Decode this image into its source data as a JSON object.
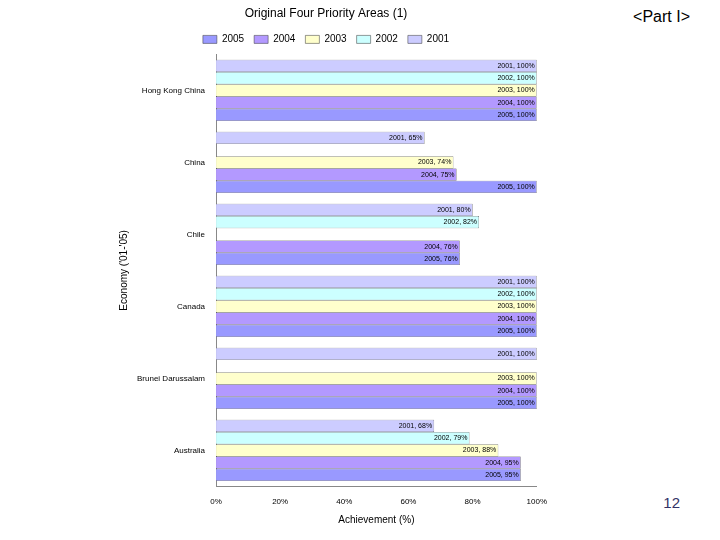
{
  "chart_data": {
    "type": "bar",
    "orientation": "horizontal",
    "title": "Original Four Priority Areas (1)",
    "x_label": "Achievement (%)",
    "y_label": "Economy ('01-'05)",
    "annotations": [
      "<Part I>",
      "12"
    ],
    "categories": [
      "Hong Kong China",
      "China",
      "Chile",
      "Canada",
      "Brunei Darussalam",
      "Australia"
    ],
    "series": [
      {
        "name": "2001",
        "color": "#ccccff",
        "values": [
          100,
          65,
          80,
          100,
          100,
          68
        ],
        "value_labels": [
          "2001, 100%",
          "2001, 65%",
          "2001, 80%",
          "2001, 100%",
          "2001, 100%",
          "2001, 68%"
        ]
      },
      {
        "name": "2002",
        "color": "#ccffff",
        "values": [
          100,
          null,
          82,
          100,
          null,
          79
        ],
        "value_labels": [
          "2002, 100%",
          null,
          "2002, 82%",
          "2002, 100%",
          null,
          "2002, 79%"
        ]
      },
      {
        "name": "2003",
        "color": "#ffffcc",
        "values": [
          100,
          74,
          null,
          100,
          100,
          88
        ],
        "value_labels": [
          "2003, 100%",
          "2003, 74%",
          null,
          "2003, 100%",
          "2003, 100%",
          "2003, 88%"
        ]
      },
      {
        "name": "2004",
        "color": "#b399ff",
        "values": [
          100,
          75,
          76,
          100,
          100,
          95
        ],
        "value_labels": [
          "2004, 100%",
          "2004, 75%",
          "2004, 76%",
          "2004, 100%",
          "2004, 100%",
          "2004, 95%"
        ]
      },
      {
        "name": "2005",
        "color": "#9999ff",
        "values": [
          100,
          100,
          76,
          100,
          100,
          95
        ],
        "value_labels": [
          "2005, 100%",
          "2005, 100%",
          "2005, 76%",
          "2005, 100%",
          "2005, 100%",
          "2005, 95%"
        ]
      }
    ],
    "xlim": [
      0,
      100
    ],
    "xticks": [
      {
        "value": 0,
        "label": "0%"
      },
      {
        "value": 20,
        "label": "20%"
      },
      {
        "value": 40,
        "label": "40%"
      },
      {
        "value": 60,
        "label": "60%"
      },
      {
        "value": 80,
        "label": "80%"
      },
      {
        "value": 100,
        "label": "100%"
      }
    ],
    "grid": false,
    "legend": "top",
    "data_labels": true
  }
}
